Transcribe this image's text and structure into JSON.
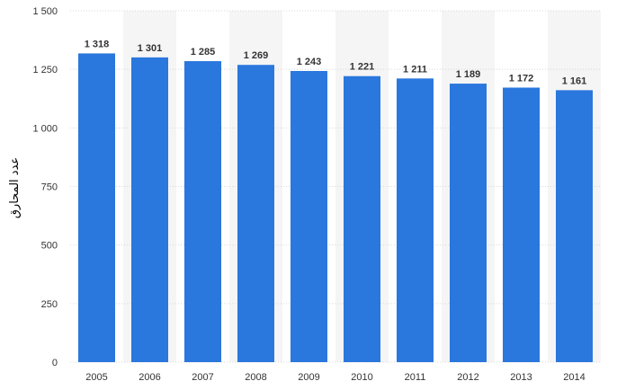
{
  "chart_data": {
    "type": "bar",
    "ylabel": "عدد المحارق",
    "xlabel": "",
    "categories": [
      "2005",
      "2006",
      "2007",
      "2008",
      "2009",
      "2010",
      "2011",
      "2012",
      "2013",
      "2014"
    ],
    "values": [
      1318,
      1301,
      1285,
      1269,
      1243,
      1221,
      1211,
      1189,
      1172,
      1161
    ],
    "value_labels": [
      "1 318",
      "1 301",
      "1 285",
      "1 269",
      "1 243",
      "1 221",
      "1 211",
      "1 189",
      "1 172",
      "1 161"
    ],
    "ylim": [
      0,
      1500
    ],
    "yticks": [
      0,
      250,
      500,
      750,
      1000,
      1250,
      1500
    ],
    "ytick_labels": [
      "0",
      "250",
      "500",
      "750",
      "1 000",
      "1 250",
      "1 500"
    ],
    "grid": true,
    "legend": "none",
    "colors": {
      "bar": "#2a77dd",
      "band": "#f5f5f5",
      "grid": "#d8d8d8"
    }
  }
}
